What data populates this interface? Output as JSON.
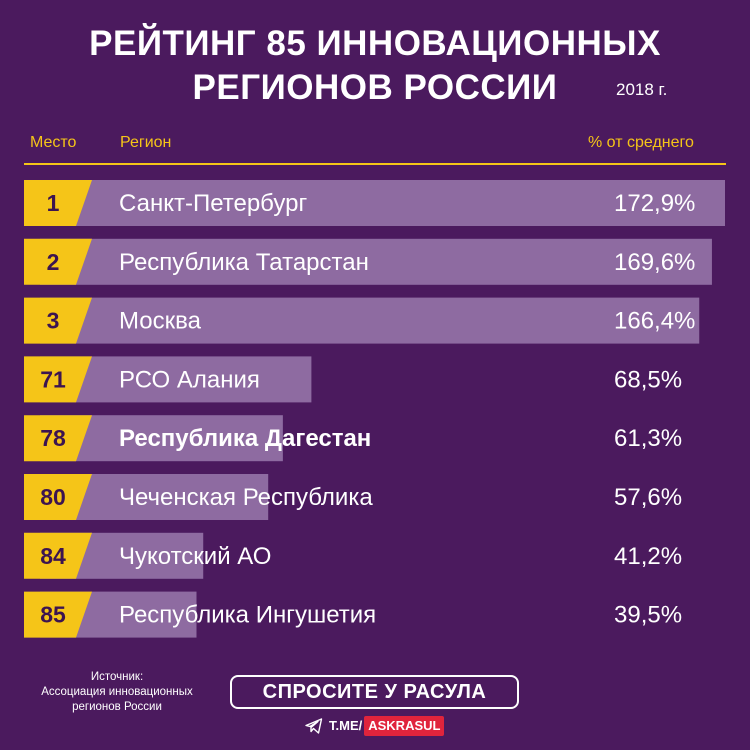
{
  "header": {
    "title_line1": "РЕЙТИНГ 85 ИННОВАЦИОННЫХ",
    "title_line2": "РЕГИОНОВ РОССИИ",
    "year": "2018 г."
  },
  "columns": {
    "place": "Место",
    "region": "Регион",
    "pct": "% от среднего"
  },
  "colors": {
    "background": "#4b1a5e",
    "badge": "#f5c518",
    "bar": "#9a7aad",
    "text": "#ffffff"
  },
  "chart_data": {
    "type": "bar",
    "orientation": "horizontal",
    "categories": [
      "Санкт-Петербург",
      "Республика Татарстан",
      "Москва",
      "РСО Алания",
      "Республика Дагестан",
      "Чеченская Республика",
      "Чукотский АО",
      "Республика Ингушетия"
    ],
    "ranks": [
      "1",
      "2",
      "3",
      "71",
      "78",
      "80",
      "84",
      "85"
    ],
    "values": [
      172.9,
      169.6,
      166.4,
      68.5,
      61.3,
      57.6,
      41.2,
      39.5
    ],
    "value_labels": [
      "172,9%",
      "169,6%",
      "166,4%",
      "68,5%",
      "61,3%",
      "57,6%",
      "41,2%",
      "39,5%"
    ],
    "highlighted": "Республика Дагестан",
    "xlim": [
      0,
      172.9
    ]
  },
  "footer": {
    "source_line1": "Источник:",
    "source_line2": "Ассоциация инновационных",
    "source_line3": "регионов России",
    "brand": "СПРОСИТЕ У РАСУЛА",
    "link_prefix": "T.ME/",
    "link_handle": "ASKRASUL"
  }
}
